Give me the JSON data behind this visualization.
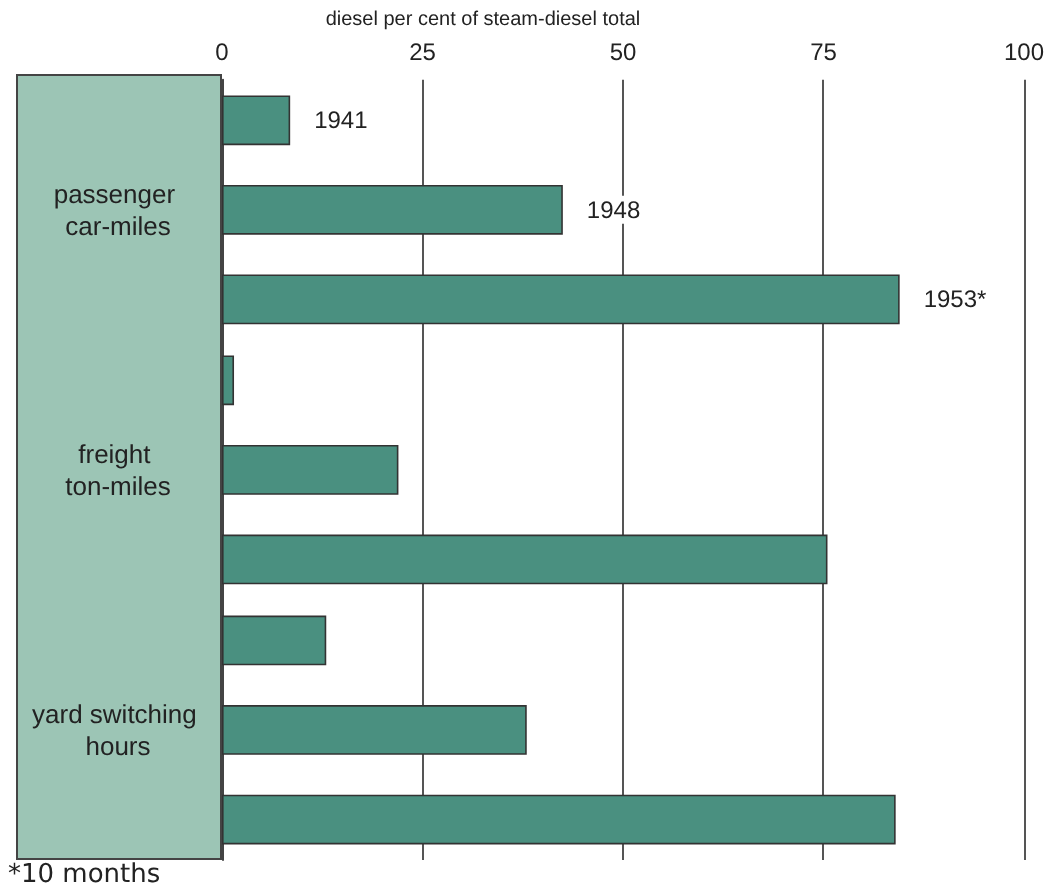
{
  "chart_data": {
    "type": "bar",
    "orientation": "horizontal",
    "xlabel": "diesel per cent of steam-diesel total",
    "categories": [
      "passenger car-miles",
      "freight ton-miles",
      "yard switching hours"
    ],
    "series": [
      {
        "name": "1941",
        "color": "#4a9080",
        "values": [
          8.5,
          1.5,
          13
        ]
      },
      {
        "name": "1948",
        "color": "#4a9080",
        "values": [
          42.5,
          22,
          38
        ]
      },
      {
        "name": "1953*",
        "color": "#4a9080",
        "values": [
          84.5,
          75.5,
          84
        ]
      }
    ],
    "xlim": [
      0,
      100
    ],
    "xticks": [
      0,
      25,
      50,
      75,
      100
    ],
    "grid": "x",
    "legend": false,
    "annotations": [
      "*10 months"
    ]
  }
}
